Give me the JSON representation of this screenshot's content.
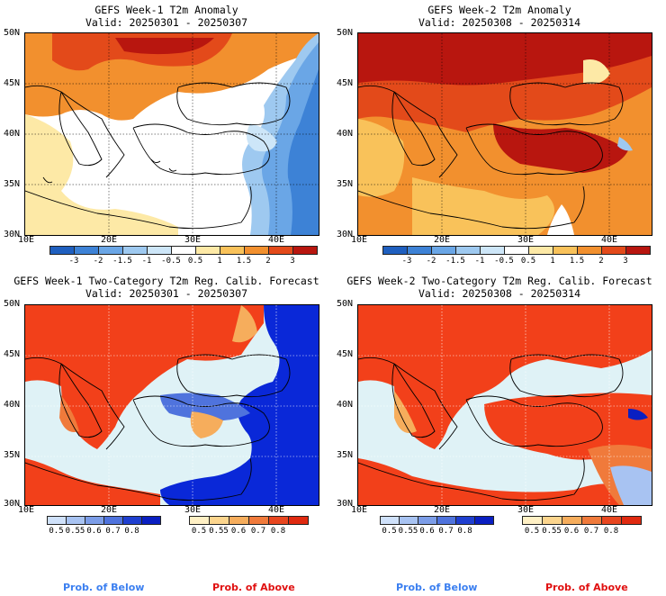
{
  "panels": [
    {
      "title1": "GEFS Week-1 T2m Anomaly",
      "title2": "Valid: 20250301 - 20250307"
    },
    {
      "title1": "GEFS Week-2 T2m Anomaly",
      "title2": "Valid: 20250308 - 20250314"
    },
    {
      "title1": "GEFS Week-1 Two-Category T2m Reg. Calib. Forecast",
      "title2": "Valid: 20250301 - 20250307"
    },
    {
      "title1": "GEFS Week-2 Two-Category T2m Reg. Calib. Forecast",
      "title2": "Valid: 20250308 - 20250314"
    }
  ],
  "axes": {
    "lat_labels": [
      "50N",
      "45N",
      "40N",
      "35N",
      "30N"
    ],
    "lon_labels": [
      "10E",
      "20E",
      "30E",
      "40E"
    ]
  },
  "anomaly_colorbar": {
    "ticks": [
      "-3",
      "-2",
      "-1.5",
      "-1",
      "-0.5",
      "0.5",
      "1",
      "1.5",
      "2",
      "3"
    ],
    "colors": [
      "#1f5fbf",
      "#3d82d6",
      "#6aa6e6",
      "#9ec9f0",
      "#cde6f8",
      "#ffffff",
      "#fde9a6",
      "#f9c25a",
      "#f2902e",
      "#e34a1a",
      "#b8160f"
    ]
  },
  "prob_below_colorbar": {
    "ticks": [
      "0.5",
      "0.55",
      "0.6",
      "0.7",
      "0.8"
    ],
    "colors": [
      "#cfe1fa",
      "#a8c3f2",
      "#7c9de8",
      "#4f73dd",
      "#1f3fd0",
      "#0a1fc2"
    ]
  },
  "prob_above_colorbar": {
    "ticks": [
      "0.5",
      "0.55",
      "0.6",
      "0.7",
      "0.8"
    ],
    "colors": [
      "#fff0c4",
      "#fcd58d",
      "#f6ad5c",
      "#f07a3b",
      "#e8461f",
      "#e02a10"
    ]
  },
  "footer": {
    "below_label": "Prob. of Below",
    "above_label": "Prob. of Above",
    "below_color": "#3b7ff0",
    "above_color": "#e01010"
  },
  "colors": {
    "sea_light": "#dff2f6",
    "above_red": "#f2401a",
    "below_blue": "#0a28d8"
  }
}
